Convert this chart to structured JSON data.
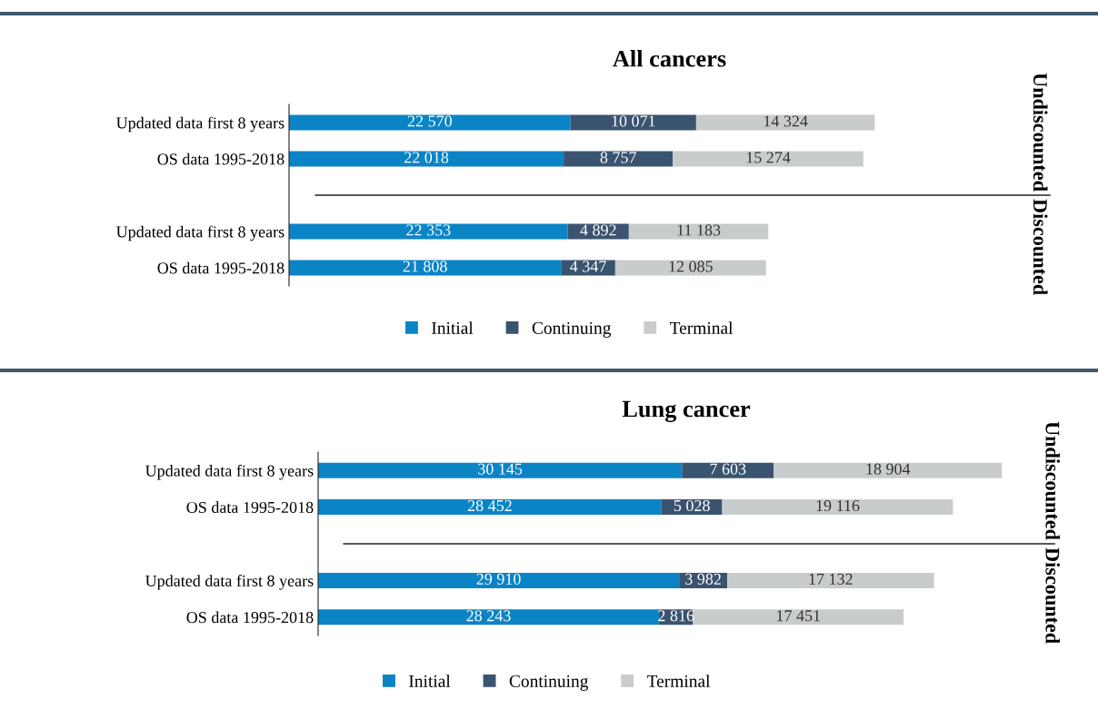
{
  "chart_data": [
    {
      "type": "bar",
      "orientation": "horizontal",
      "stacked": true,
      "title": "All cancers",
      "categories": [
        "Updated data first 8 years",
        "OS data 1995-2018",
        null,
        "Updated data first 8 years",
        "OS data 1995-2018"
      ],
      "series": [
        {
          "name": "Initial",
          "color": "#0b84c6",
          "values": [
            22570,
            22018,
            null,
            22353,
            21808
          ],
          "value_labels": [
            "22 570",
            "22 018",
            null,
            "22 353",
            "21 808"
          ]
        },
        {
          "name": "Continuing",
          "color": "#3a5470",
          "values": [
            10071,
            8757,
            null,
            4892,
            4347
          ],
          "value_labels": [
            "10 071",
            "8 757",
            null,
            "4 892",
            "4 347"
          ]
        },
        {
          "name": "Terminal",
          "color": "#c9cccd",
          "values": [
            14324,
            15274,
            null,
            11183,
            12085
          ],
          "value_labels": [
            "14 324",
            "15 274",
            null,
            "11 183",
            "12 085"
          ]
        }
      ],
      "xlim": [
        0,
        61000
      ],
      "tick_labels": "y",
      "grid": false,
      "legend": "bottom",
      "marker": "square",
      "annotations": [
        "Undiscounted",
        "Discounted"
      ]
    },
    {
      "type": "bar",
      "orientation": "horizontal",
      "stacked": true,
      "title": "Lung cancer",
      "categories": [
        "Updated data first 8 years",
        "OS data 1995-2018",
        null,
        "Updated data first 8 years",
        "OS data 1995-2018"
      ],
      "series": [
        {
          "name": "Initial",
          "color": "#0b84c6",
          "values": [
            30145,
            28452,
            null,
            29910,
            28243
          ],
          "value_labels": [
            "30 145",
            "28 452",
            null,
            "29 910",
            "28 243"
          ]
        },
        {
          "name": "Continuing",
          "color": "#3a5470",
          "values": [
            7603,
            5028,
            null,
            3982,
            2816
          ],
          "value_labels": [
            "7 603",
            "5 028",
            null,
            "3 982",
            "2 816"
          ]
        },
        {
          "name": "Terminal",
          "color": "#c9cccd",
          "values": [
            18904,
            19116,
            null,
            17132,
            17451
          ],
          "value_labels": [
            "18 904",
            "19 116",
            null,
            "17 132",
            "17 451"
          ]
        }
      ],
      "xlim": [
        0,
        61000
      ],
      "tick_labels": "y",
      "grid": false,
      "legend": "bottom",
      "marker": "square",
      "annotations": [
        "Undiscounted",
        "Discounted"
      ]
    }
  ]
}
